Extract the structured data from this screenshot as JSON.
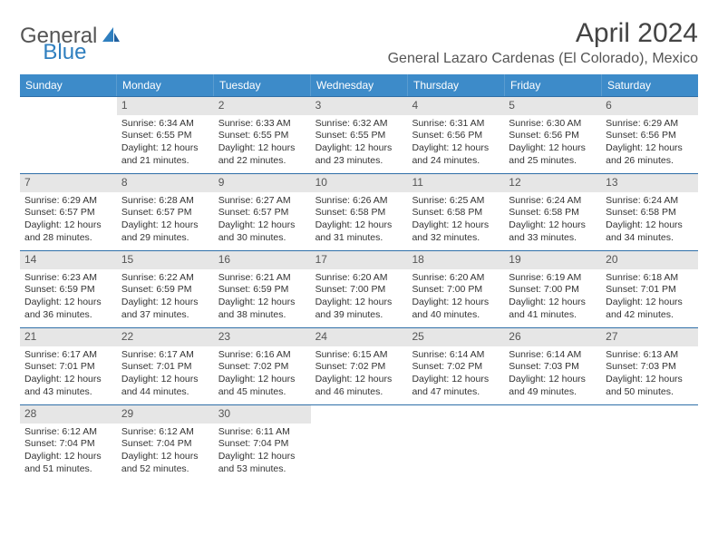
{
  "brand": {
    "text1": "General",
    "text2": "Blue"
  },
  "title": "April 2024",
  "location": "General Lazaro Cardenas (El Colorado), Mexico",
  "colors": {
    "header_bg": "#3d8bc9",
    "header_text": "#ffffff",
    "daynum_bg": "#e6e6e6",
    "week_border": "#2f6fa8",
    "logo_blue": "#2f7fbf",
    "body_text": "#333333"
  },
  "dow": [
    "Sunday",
    "Monday",
    "Tuesday",
    "Wednesday",
    "Thursday",
    "Friday",
    "Saturday"
  ],
  "weeks": [
    [
      {
        "n": "",
        "sr": "",
        "ss": "",
        "dl": ""
      },
      {
        "n": "1",
        "sr": "Sunrise: 6:34 AM",
        "ss": "Sunset: 6:55 PM",
        "dl": "Daylight: 12 hours and 21 minutes."
      },
      {
        "n": "2",
        "sr": "Sunrise: 6:33 AM",
        "ss": "Sunset: 6:55 PM",
        "dl": "Daylight: 12 hours and 22 minutes."
      },
      {
        "n": "3",
        "sr": "Sunrise: 6:32 AM",
        "ss": "Sunset: 6:55 PM",
        "dl": "Daylight: 12 hours and 23 minutes."
      },
      {
        "n": "4",
        "sr": "Sunrise: 6:31 AM",
        "ss": "Sunset: 6:56 PM",
        "dl": "Daylight: 12 hours and 24 minutes."
      },
      {
        "n": "5",
        "sr": "Sunrise: 6:30 AM",
        "ss": "Sunset: 6:56 PM",
        "dl": "Daylight: 12 hours and 25 minutes."
      },
      {
        "n": "6",
        "sr": "Sunrise: 6:29 AM",
        "ss": "Sunset: 6:56 PM",
        "dl": "Daylight: 12 hours and 26 minutes."
      }
    ],
    [
      {
        "n": "7",
        "sr": "Sunrise: 6:29 AM",
        "ss": "Sunset: 6:57 PM",
        "dl": "Daylight: 12 hours and 28 minutes."
      },
      {
        "n": "8",
        "sr": "Sunrise: 6:28 AM",
        "ss": "Sunset: 6:57 PM",
        "dl": "Daylight: 12 hours and 29 minutes."
      },
      {
        "n": "9",
        "sr": "Sunrise: 6:27 AM",
        "ss": "Sunset: 6:57 PM",
        "dl": "Daylight: 12 hours and 30 minutes."
      },
      {
        "n": "10",
        "sr": "Sunrise: 6:26 AM",
        "ss": "Sunset: 6:58 PM",
        "dl": "Daylight: 12 hours and 31 minutes."
      },
      {
        "n": "11",
        "sr": "Sunrise: 6:25 AM",
        "ss": "Sunset: 6:58 PM",
        "dl": "Daylight: 12 hours and 32 minutes."
      },
      {
        "n": "12",
        "sr": "Sunrise: 6:24 AM",
        "ss": "Sunset: 6:58 PM",
        "dl": "Daylight: 12 hours and 33 minutes."
      },
      {
        "n": "13",
        "sr": "Sunrise: 6:24 AM",
        "ss": "Sunset: 6:58 PM",
        "dl": "Daylight: 12 hours and 34 minutes."
      }
    ],
    [
      {
        "n": "14",
        "sr": "Sunrise: 6:23 AM",
        "ss": "Sunset: 6:59 PM",
        "dl": "Daylight: 12 hours and 36 minutes."
      },
      {
        "n": "15",
        "sr": "Sunrise: 6:22 AM",
        "ss": "Sunset: 6:59 PM",
        "dl": "Daylight: 12 hours and 37 minutes."
      },
      {
        "n": "16",
        "sr": "Sunrise: 6:21 AM",
        "ss": "Sunset: 6:59 PM",
        "dl": "Daylight: 12 hours and 38 minutes."
      },
      {
        "n": "17",
        "sr": "Sunrise: 6:20 AM",
        "ss": "Sunset: 7:00 PM",
        "dl": "Daylight: 12 hours and 39 minutes."
      },
      {
        "n": "18",
        "sr": "Sunrise: 6:20 AM",
        "ss": "Sunset: 7:00 PM",
        "dl": "Daylight: 12 hours and 40 minutes."
      },
      {
        "n": "19",
        "sr": "Sunrise: 6:19 AM",
        "ss": "Sunset: 7:00 PM",
        "dl": "Daylight: 12 hours and 41 minutes."
      },
      {
        "n": "20",
        "sr": "Sunrise: 6:18 AM",
        "ss": "Sunset: 7:01 PM",
        "dl": "Daylight: 12 hours and 42 minutes."
      }
    ],
    [
      {
        "n": "21",
        "sr": "Sunrise: 6:17 AM",
        "ss": "Sunset: 7:01 PM",
        "dl": "Daylight: 12 hours and 43 minutes."
      },
      {
        "n": "22",
        "sr": "Sunrise: 6:17 AM",
        "ss": "Sunset: 7:01 PM",
        "dl": "Daylight: 12 hours and 44 minutes."
      },
      {
        "n": "23",
        "sr": "Sunrise: 6:16 AM",
        "ss": "Sunset: 7:02 PM",
        "dl": "Daylight: 12 hours and 45 minutes."
      },
      {
        "n": "24",
        "sr": "Sunrise: 6:15 AM",
        "ss": "Sunset: 7:02 PM",
        "dl": "Daylight: 12 hours and 46 minutes."
      },
      {
        "n": "25",
        "sr": "Sunrise: 6:14 AM",
        "ss": "Sunset: 7:02 PM",
        "dl": "Daylight: 12 hours and 47 minutes."
      },
      {
        "n": "26",
        "sr": "Sunrise: 6:14 AM",
        "ss": "Sunset: 7:03 PM",
        "dl": "Daylight: 12 hours and 49 minutes."
      },
      {
        "n": "27",
        "sr": "Sunrise: 6:13 AM",
        "ss": "Sunset: 7:03 PM",
        "dl": "Daylight: 12 hours and 50 minutes."
      }
    ],
    [
      {
        "n": "28",
        "sr": "Sunrise: 6:12 AM",
        "ss": "Sunset: 7:04 PM",
        "dl": "Daylight: 12 hours and 51 minutes."
      },
      {
        "n": "29",
        "sr": "Sunrise: 6:12 AM",
        "ss": "Sunset: 7:04 PM",
        "dl": "Daylight: 12 hours and 52 minutes."
      },
      {
        "n": "30",
        "sr": "Sunrise: 6:11 AM",
        "ss": "Sunset: 7:04 PM",
        "dl": "Daylight: 12 hours and 53 minutes."
      },
      {
        "n": "",
        "sr": "",
        "ss": "",
        "dl": ""
      },
      {
        "n": "",
        "sr": "",
        "ss": "",
        "dl": ""
      },
      {
        "n": "",
        "sr": "",
        "ss": "",
        "dl": ""
      },
      {
        "n": "",
        "sr": "",
        "ss": "",
        "dl": ""
      }
    ]
  ]
}
